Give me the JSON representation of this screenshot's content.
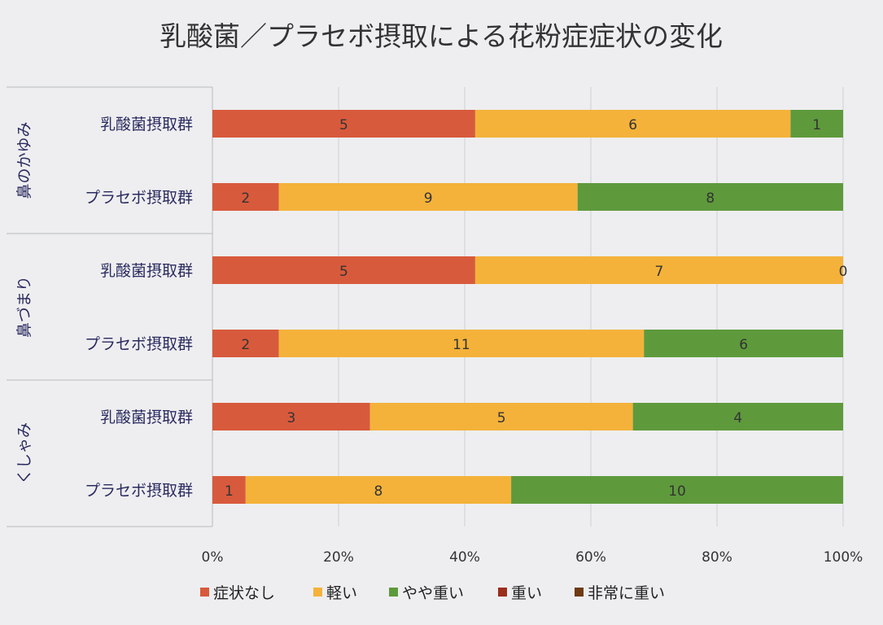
{
  "chart_data": {
    "type": "bar",
    "orientation": "horizontal",
    "stacked": "percent",
    "title": "乳酸菌／プラセボ摂取による花粉症症状の変化",
    "groups": [
      {
        "label": "鼻のかゆみ",
        "categories": [
          "乳酸菌摂取群",
          "プラセボ摂取群"
        ]
      },
      {
        "label": "鼻づまり",
        "categories": [
          "乳酸菌摂取群",
          "プラセボ摂取群"
        ]
      },
      {
        "label": "くしゃみ",
        "categories": [
          "乳酸菌摂取群",
          "プラセボ摂取群"
        ]
      }
    ],
    "series": [
      {
        "name": "症状なし",
        "color": "#d85a3c",
        "values": [
          5,
          2,
          5,
          2,
          3,
          1
        ]
      },
      {
        "name": "軽い",
        "color": "#f4b23a",
        "values": [
          6,
          9,
          7,
          11,
          5,
          8
        ]
      },
      {
        "name": "やや重い",
        "color": "#5e9a3c",
        "values": [
          1,
          8,
          0,
          6,
          4,
          10
        ]
      },
      {
        "name": "重い",
        "color": "#9c2e1c",
        "values": [
          0,
          0,
          0,
          0,
          0,
          0
        ]
      },
      {
        "name": "非常に重い",
        "color": "#6e3a14",
        "values": [
          0,
          0,
          0,
          0,
          0,
          0
        ]
      }
    ],
    "xticks": [
      "0%",
      "20%",
      "40%",
      "60%",
      "80%",
      "100%"
    ],
    "xlim": [
      0,
      100
    ],
    "grid": "vertical",
    "legend": "bottom"
  }
}
